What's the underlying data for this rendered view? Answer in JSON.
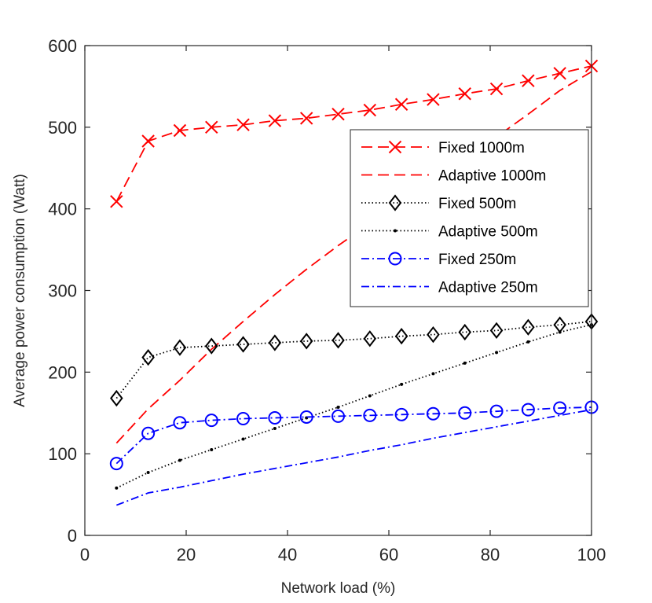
{
  "chart_data": {
    "type": "line",
    "title": "",
    "xlabel": "Network load (%)",
    "ylabel": "Average power consumption (Watt)",
    "xlim": [
      0,
      100
    ],
    "ylim": [
      0,
      600
    ],
    "xticks": [
      0,
      20,
      40,
      60,
      80,
      100
    ],
    "yticks": [
      0,
      100,
      200,
      300,
      400,
      500,
      600
    ],
    "grid": false,
    "legend_position": "right",
    "x": [
      6.25,
      12.5,
      18.75,
      25,
      31.25,
      37.5,
      43.75,
      50,
      56.25,
      62.5,
      68.75,
      75,
      81.25,
      87.5,
      93.75,
      100
    ],
    "series": [
      {
        "name": "Fixed 1000m",
        "color": "#ff0000",
        "dash": "14,7",
        "marker": "x",
        "values": [
          409,
          483,
          496,
          500,
          503,
          508,
          511,
          516,
          521,
          528,
          534,
          541,
          547,
          557,
          566,
          575
        ]
      },
      {
        "name": "Adaptive 1000m",
        "color": "#ff0000",
        "dash": "14,7",
        "marker": "none",
        "values": [
          113,
          155,
          190,
          228,
          262,
          295,
          326,
          355,
          382,
          410,
          436,
          462,
          488,
          516,
          545,
          568
        ]
      },
      {
        "name": "Fixed 500m",
        "color": "#000000",
        "dash": "1.5,3",
        "marker": "diamond",
        "values": [
          168,
          218,
          230,
          232,
          234,
          236,
          238,
          239,
          241,
          244,
          246,
          249,
          251,
          255,
          258,
          262
        ]
      },
      {
        "name": "Adaptive 500m",
        "color": "#000000",
        "dash": "1.5,3",
        "marker": "dot",
        "values": [
          58,
          77,
          92,
          105,
          118,
          131,
          144,
          157,
          171,
          185,
          198,
          211,
          224,
          237,
          249,
          258
        ]
      },
      {
        "name": "Fixed 250m",
        "color": "#0000ff",
        "dash": "10,4,2,4",
        "marker": "circle",
        "values": [
          88,
          125,
          138,
          141,
          143,
          144,
          145,
          146,
          147,
          148,
          149,
          150,
          152,
          154,
          156,
          157
        ]
      },
      {
        "name": "Adaptive 250m",
        "color": "#0000ff",
        "dash": "10,4,2,4",
        "marker": "none",
        "values": [
          37,
          52,
          59,
          67,
          75,
          82,
          89,
          96,
          104,
          111,
          119,
          126,
          133,
          140,
          147,
          154
        ]
      }
    ]
  }
}
